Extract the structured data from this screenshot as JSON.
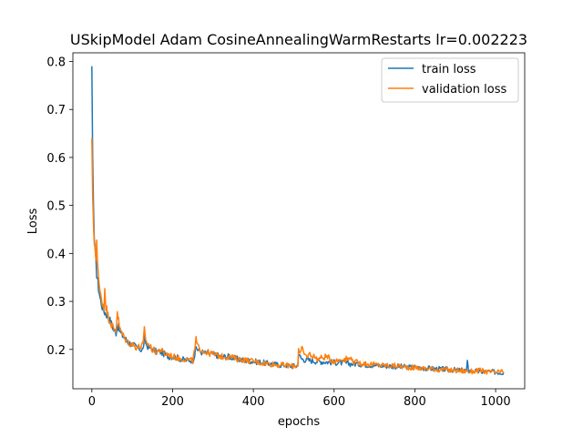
{
  "chart_data": {
    "type": "line",
    "title": "USkipModel Adam CosineAnnealingWarmRestarts lr=0.002223",
    "xlabel": "epochs",
    "ylabel": "Loss",
    "xlim": [
      -47,
      1072
    ],
    "ylim": [
      0.118,
      0.818
    ],
    "xticks": [
      0,
      200,
      400,
      600,
      800,
      1000
    ],
    "yticks": [
      0.2,
      0.3,
      0.4,
      0.5,
      0.6,
      0.7,
      0.8
    ],
    "xtick_labels": [
      "0",
      "200",
      "400",
      "600",
      "800",
      "1000"
    ],
    "ytick_labels": [
      "0.2",
      "0.3",
      "0.4",
      "0.5",
      "0.6",
      "0.7",
      "0.8"
    ],
    "grid": false,
    "legend_position": "top-right",
    "series": [
      {
        "name": "train loss",
        "color": "#1f77b4",
        "x": [
          0,
          2,
          4,
          6,
          8,
          10,
          12,
          15,
          18,
          22,
          26,
          30,
          35,
          40,
          45,
          50,
          55,
          60,
          63,
          66,
          70,
          80,
          90,
          100,
          110,
          120,
          127,
          130,
          135,
          140,
          150,
          160,
          170,
          180,
          190,
          200,
          210,
          220,
          230,
          240,
          250,
          255,
          258,
          262,
          270,
          280,
          300,
          320,
          340,
          360,
          380,
          400,
          420,
          440,
          460,
          480,
          500,
          510,
          512,
          515,
          520,
          530,
          540,
          560,
          580,
          600,
          620,
          640,
          660,
          680,
          700,
          720,
          740,
          760,
          780,
          800,
          820,
          840,
          860,
          880,
          900,
          920,
          928,
          930,
          933,
          940,
          960,
          980,
          1000,
          1010,
          1020
        ],
        "values": [
          0.79,
          0.6,
          0.5,
          0.43,
          0.4,
          0.38,
          0.36,
          0.34,
          0.32,
          0.3,
          0.29,
          0.28,
          0.275,
          0.27,
          0.26,
          0.25,
          0.24,
          0.235,
          0.25,
          0.245,
          0.235,
          0.225,
          0.215,
          0.21,
          0.205,
          0.2,
          0.2,
          0.225,
          0.21,
          0.205,
          0.2,
          0.195,
          0.195,
          0.19,
          0.185,
          0.185,
          0.183,
          0.18,
          0.178,
          0.178,
          0.177,
          0.19,
          0.205,
          0.2,
          0.195,
          0.192,
          0.19,
          0.185,
          0.185,
          0.18,
          0.177,
          0.175,
          0.173,
          0.17,
          0.168,
          0.167,
          0.165,
          0.165,
          0.195,
          0.185,
          0.18,
          0.178,
          0.177,
          0.175,
          0.174,
          0.173,
          0.172,
          0.17,
          0.17,
          0.168,
          0.167,
          0.166,
          0.165,
          0.164,
          0.163,
          0.162,
          0.161,
          0.16,
          0.159,
          0.158,
          0.157,
          0.156,
          0.156,
          0.172,
          0.155,
          0.155,
          0.154,
          0.153,
          0.153,
          0.152,
          0.152
        ]
      },
      {
        "name": "validation loss",
        "color": "#ff7f0e",
        "x": [
          0,
          2,
          4,
          6,
          8,
          10,
          12,
          15,
          18,
          22,
          26,
          30,
          32,
          35,
          40,
          45,
          50,
          55,
          60,
          63,
          66,
          70,
          80,
          90,
          100,
          110,
          120,
          127,
          130,
          135,
          140,
          150,
          160,
          170,
          180,
          190,
          200,
          210,
          220,
          230,
          240,
          250,
          255,
          258,
          262,
          270,
          280,
          300,
          320,
          340,
          360,
          380,
          400,
          420,
          440,
          460,
          480,
          500,
          510,
          512,
          515,
          520,
          530,
          540,
          560,
          580,
          600,
          620,
          640,
          642,
          645,
          660,
          680,
          700,
          720,
          740,
          760,
          780,
          800,
          820,
          840,
          860,
          880,
          900,
          920,
          940,
          960,
          980,
          1000,
          1010,
          1020
        ],
        "values": [
          0.64,
          0.52,
          0.46,
          0.42,
          0.4,
          0.39,
          0.43,
          0.37,
          0.33,
          0.31,
          0.3,
          0.285,
          0.33,
          0.29,
          0.27,
          0.26,
          0.25,
          0.24,
          0.24,
          0.28,
          0.26,
          0.24,
          0.225,
          0.215,
          0.21,
          0.205,
          0.205,
          0.21,
          0.24,
          0.215,
          0.21,
          0.2,
          0.195,
          0.2,
          0.19,
          0.19,
          0.185,
          0.183,
          0.18,
          0.18,
          0.178,
          0.176,
          0.2,
          0.22,
          0.205,
          0.2,
          0.195,
          0.19,
          0.185,
          0.185,
          0.18,
          0.178,
          0.175,
          0.172,
          0.17,
          0.168,
          0.167,
          0.165,
          0.168,
          0.205,
          0.19,
          0.2,
          0.185,
          0.19,
          0.18,
          0.185,
          0.175,
          0.18,
          0.18,
          0.19,
          0.175,
          0.172,
          0.17,
          0.168,
          0.167,
          0.166,
          0.165,
          0.163,
          0.162,
          0.16,
          0.16,
          0.158,
          0.157,
          0.156,
          0.155,
          0.154,
          0.156,
          0.153,
          0.152,
          0.153,
          0.152
        ]
      }
    ]
  }
}
